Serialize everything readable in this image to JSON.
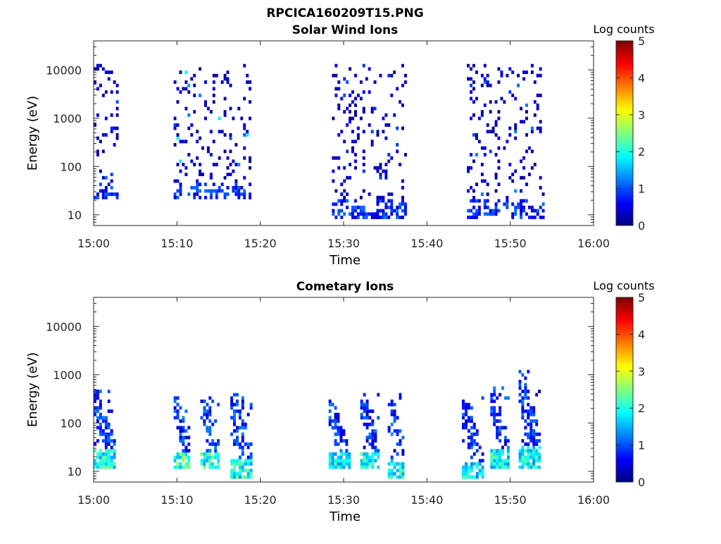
{
  "figure": {
    "title": "RPCICA160209T15.PNG"
  },
  "chart_data": [
    {
      "type": "heatmap",
      "title": "Solar Wind Ions",
      "xlabel": "Time",
      "ylabel": "Energy (eV)",
      "x_range": [
        "15:00",
        "16:00"
      ],
      "x_ticks": [
        "15:00",
        "15:10",
        "15:20",
        "15:30",
        "15:40",
        "15:50",
        "16:00"
      ],
      "y_scale": "log",
      "ylim": [
        6,
        40000
      ],
      "y_ticks": [
        "10",
        "100",
        "1000",
        "10000"
      ],
      "colorbar": {
        "label": "Log counts",
        "range": [
          0,
          5
        ],
        "ticks": [
          "0",
          "1",
          "2",
          "3",
          "4",
          "5"
        ],
        "colormap": "jet"
      },
      "x_unit": "minutes after 15:00",
      "bursts": [
        {
          "t_start": 0.0,
          "t_end": 2.9,
          "e_min": 20,
          "e_max": 15000,
          "peak_log_counts": 1.2
        },
        {
          "t_start": 9.6,
          "t_end": 18.8,
          "e_min": 20,
          "e_max": 14000,
          "peak_log_counts": 2.0
        },
        {
          "t_start": 28.6,
          "t_end": 37.3,
          "e_min": 8,
          "e_max": 14000,
          "peak_log_counts": 1.0
        },
        {
          "t_start": 44.8,
          "t_end": 54.0,
          "e_min": 8,
          "e_max": 14000,
          "peak_log_counts": 1.3
        }
      ]
    },
    {
      "type": "heatmap",
      "title": "Cometary Ions",
      "xlabel": "Time",
      "ylabel": "Energy (eV)",
      "x_range": [
        "15:00",
        "16:00"
      ],
      "x_ticks": [
        "15:00",
        "15:10",
        "15:20",
        "15:30",
        "15:40",
        "15:50",
        "16:00"
      ],
      "y_scale": "log",
      "ylim": [
        6,
        40000
      ],
      "y_ticks": [
        "10",
        "100",
        "1000",
        "10000"
      ],
      "colorbar": {
        "label": "Log counts",
        "range": [
          0,
          5
        ],
        "ticks": [
          "0",
          "1",
          "2",
          "3",
          "4",
          "5"
        ],
        "colormap": "jet"
      },
      "x_unit": "minutes after 15:00",
      "bursts": [
        {
          "t_start": 0.0,
          "t_end": 2.4,
          "e_min": 12,
          "e_max": 500,
          "peak_log_counts": 2.4
        },
        {
          "t_start": 9.6,
          "t_end": 11.6,
          "e_min": 12,
          "e_max": 350,
          "peak_log_counts": 2.8
        },
        {
          "t_start": 12.8,
          "t_end": 14.9,
          "e_min": 12,
          "e_max": 400,
          "peak_log_counts": 2.6
        },
        {
          "t_start": 16.4,
          "t_end": 18.8,
          "e_min": 7,
          "e_max": 450,
          "peak_log_counts": 2.5
        },
        {
          "t_start": 28.2,
          "t_end": 30.6,
          "e_min": 12,
          "e_max": 300,
          "peak_log_counts": 2.3
        },
        {
          "t_start": 32.0,
          "t_end": 34.2,
          "e_min": 12,
          "e_max": 450,
          "peak_log_counts": 2.4
        },
        {
          "t_start": 35.3,
          "t_end": 37.3,
          "e_min": 7,
          "e_max": 400,
          "peak_log_counts": 2.5
        },
        {
          "t_start": 44.2,
          "t_end": 46.6,
          "e_min": 7,
          "e_max": 350,
          "peak_log_counts": 2.3
        },
        {
          "t_start": 47.6,
          "t_end": 49.9,
          "e_min": 12,
          "e_max": 600,
          "peak_log_counts": 2.4
        },
        {
          "t_start": 51.0,
          "t_end": 53.6,
          "e_min": 12,
          "e_max": 1200,
          "peak_log_counts": 2.4
        }
      ]
    }
  ]
}
